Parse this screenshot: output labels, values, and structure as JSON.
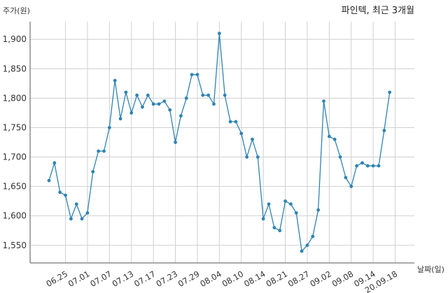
{
  "chart_data": {
    "type": "line",
    "title": "파인텍, 최근 3개월",
    "ylabel": "주가(원)",
    "xlabel": "날짜(일)",
    "ylim": [
      1520,
      1930
    ],
    "grid": true,
    "y_ticks": [
      1550,
      1600,
      1650,
      1700,
      1750,
      1800,
      1850,
      1900
    ],
    "y_tick_labels": [
      "1,550",
      "1,600",
      "1,650",
      "1,700",
      "1,750",
      "1,800",
      "1,850",
      "1,900"
    ],
    "x_tick_labels": [
      "06.25",
      "07.01",
      "07.07",
      "07.13",
      "07.17",
      "07.23",
      "07.29",
      "08.04",
      "08.10",
      "08.14",
      "08.21",
      "08.27",
      "09.02",
      "09.08",
      "09.14",
      "20.09.18"
    ],
    "x_tick_positions": [
      3,
      7,
      11,
      15,
      19,
      23,
      27,
      31,
      35,
      39,
      43,
      47,
      51,
      55,
      59,
      63
    ],
    "series": [
      {
        "values": [
          1660,
          1690,
          1640,
          1635,
          1595,
          1620,
          1595,
          1605,
          1675,
          1710,
          1710,
          1750,
          1830,
          1765,
          1810,
          1775,
          1805,
          1785,
          1805,
          1790,
          1790,
          1795,
          1780,
          1725,
          1770,
          1800,
          1840,
          1840,
          1805,
          1805,
          1790,
          1910,
          1805,
          1760,
          1760,
          1740,
          1700,
          1730,
          1700,
          1595,
          1620,
          1580,
          1575,
          1625,
          1620,
          1605,
          1540,
          1550,
          1565,
          1610,
          1795,
          1735,
          1730,
          1700,
          1665,
          1650,
          1685,
          1690,
          1685,
          1685,
          1685,
          1745,
          1810
        ]
      }
    ]
  }
}
